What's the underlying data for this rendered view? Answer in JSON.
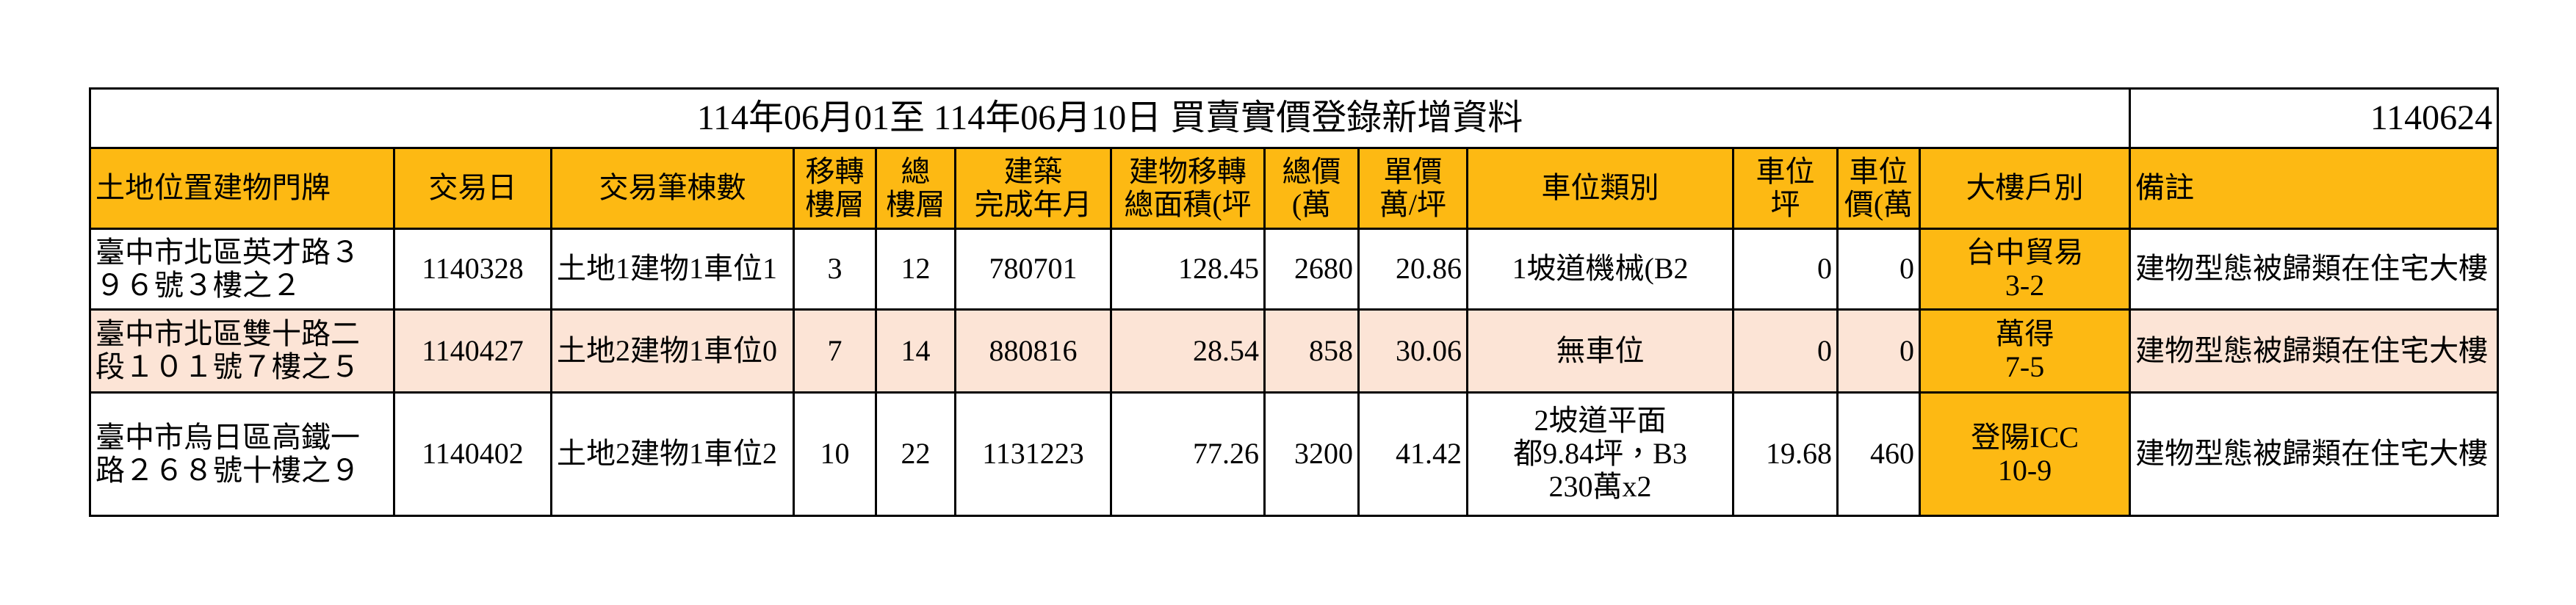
{
  "title": "114年06月01至 114年06月10日 買賣實價登錄新增資料",
  "code": "1140624",
  "table": {
    "header": [
      [
        "土地位置建物門牌"
      ],
      [
        "交易日"
      ],
      [
        "交易筆棟數"
      ],
      [
        "移轉",
        "樓層"
      ],
      [
        "總",
        "樓層"
      ],
      [
        "建築",
        "完成年月"
      ],
      [
        "建物移轉",
        "總面積(坪"
      ],
      [
        "總價",
        "(萬"
      ],
      [
        "單價",
        "萬/坪"
      ],
      [
        "車位類別"
      ],
      [
        "車位",
        "坪"
      ],
      [
        "車位",
        "價(萬"
      ],
      [
        "大樓戶別"
      ],
      [
        "備註"
      ]
    ],
    "rows": [
      [
        [
          "臺中市北區英才路３９６號３樓之２"
        ],
        [
          "1140328"
        ],
        [
          "土地1建物1車位1"
        ],
        [
          "3"
        ],
        [
          "12"
        ],
        [
          "780701"
        ],
        [
          "128.45"
        ],
        [
          "2680"
        ],
        [
          "20.86"
        ],
        [
          "1坡道機械(B2"
        ],
        [
          "0"
        ],
        [
          "0"
        ],
        [
          "台中貿易",
          "3-2"
        ],
        [
          "建物型態被歸類在住宅大樓"
        ]
      ],
      [
        [
          "臺中市北區雙十路二段１０１號７樓之５"
        ],
        [
          "1140427"
        ],
        [
          "土地2建物1車位0"
        ],
        [
          "7"
        ],
        [
          "14"
        ],
        [
          "880816"
        ],
        [
          "28.54"
        ],
        [
          "858"
        ],
        [
          "30.06"
        ],
        [
          "無車位"
        ],
        [
          "0"
        ],
        [
          "0"
        ],
        [
          "萬得",
          "7-5"
        ],
        [
          "建物型態被歸類在住宅大樓"
        ]
      ],
      [
        [
          "臺中市烏日區高鐵一路２６８號十樓之９"
        ],
        [
          "1140402"
        ],
        [
          "土地2建物1車位2"
        ],
        [
          "10"
        ],
        [
          "22"
        ],
        [
          "1131223"
        ],
        [
          "77.26"
        ],
        [
          "3200"
        ],
        [
          "41.42"
        ],
        [
          "2坡道平面",
          "都9.84坪，B3",
          "230萬x2"
        ],
        [
          "19.68"
        ],
        [
          "460"
        ],
        [
          "登陽ICC",
          "10-9"
        ],
        [
          "建物型態被歸類在住宅大樓"
        ]
      ]
    ]
  }
}
